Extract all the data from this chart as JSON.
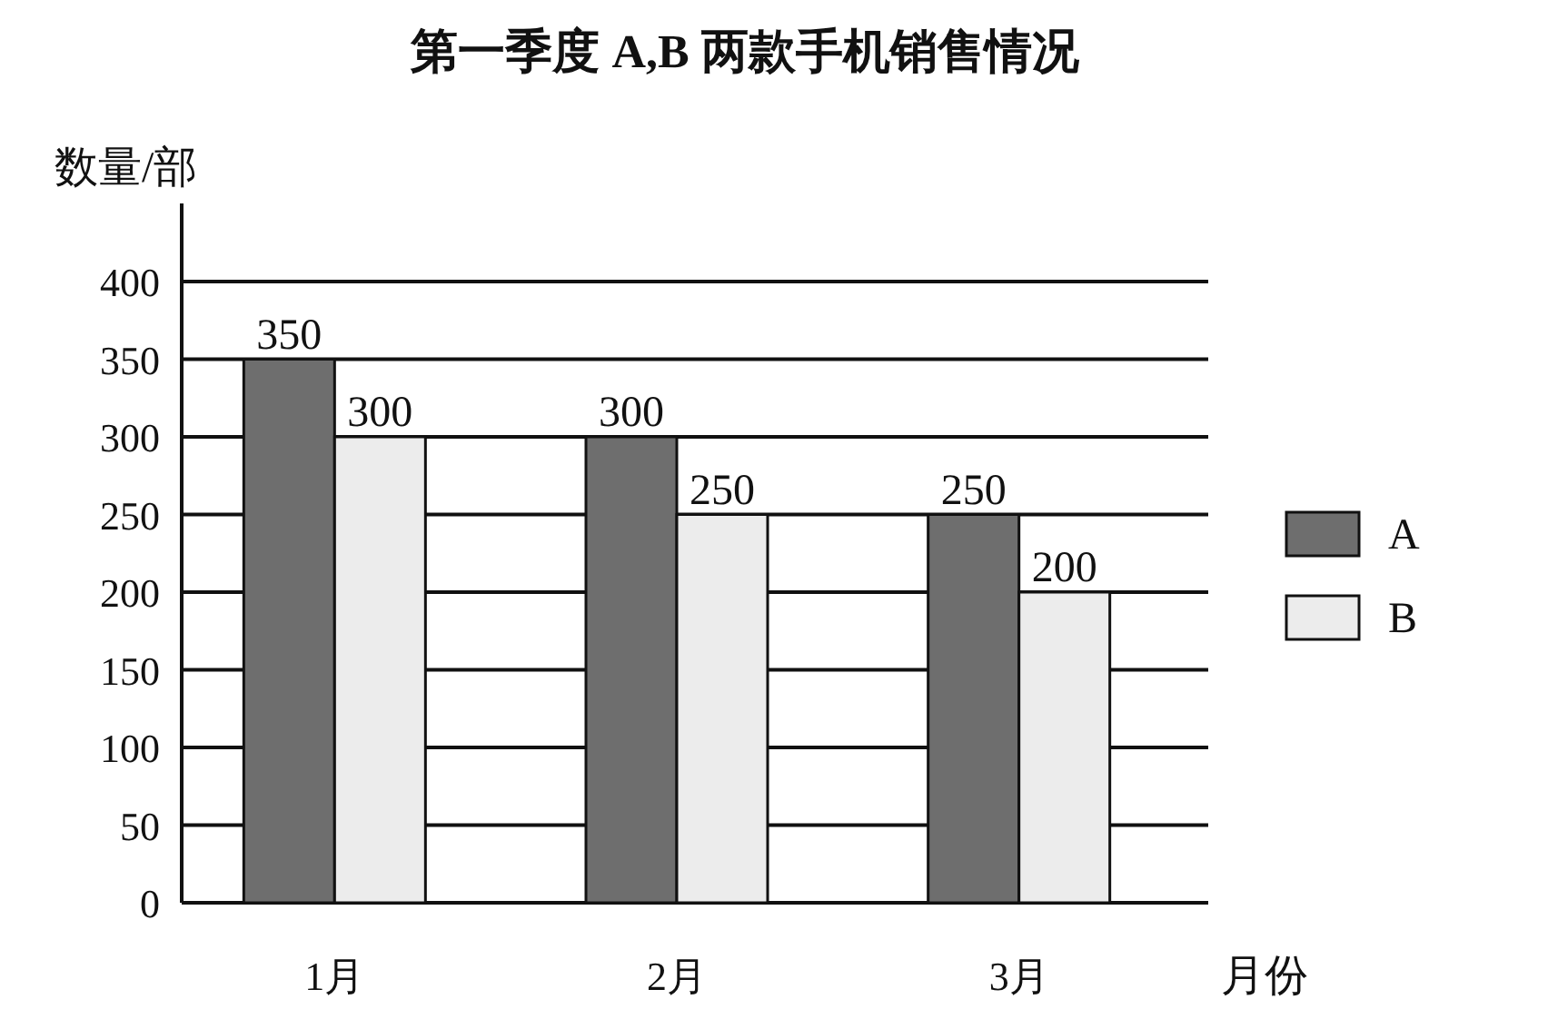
{
  "chart_data": {
    "type": "bar",
    "title": "第一季度 A,B 两款手机销售情况",
    "ylabel": "数量/部",
    "xlabel": "月份",
    "categories": [
      "1月",
      "2月",
      "3月"
    ],
    "series": [
      {
        "name": "A",
        "color": "#6e6e6e",
        "values": [
          350,
          300,
          250
        ]
      },
      {
        "name": "B",
        "color": "#ececec",
        "values": [
          300,
          250,
          200
        ]
      }
    ],
    "ylim": [
      0,
      400
    ],
    "yticks": [
      0,
      50,
      100,
      150,
      200,
      250,
      300,
      350,
      400
    ],
    "grid": "y",
    "legend": "right",
    "data_labels": true
  }
}
